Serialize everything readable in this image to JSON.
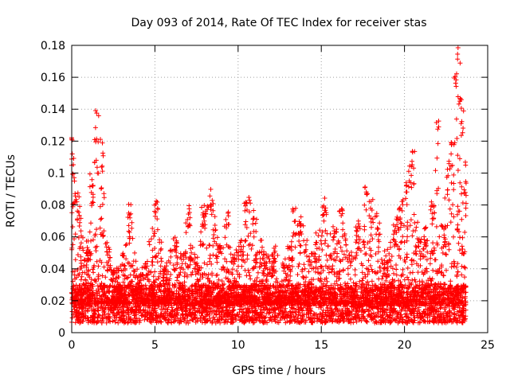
{
  "chart_data": {
    "type": "scatter",
    "title": "Day 093 of 2014, Rate Of TEC Index for receiver stas",
    "xlabel": "GPS time / hours",
    "ylabel": "ROTI / TECUs",
    "xlim": [
      0,
      25
    ],
    "ylim": [
      0,
      0.18
    ],
    "xticks": [
      0,
      5,
      10,
      15,
      20,
      25
    ],
    "xtick_labels": [
      "0",
      "5",
      "10",
      "15",
      "20",
      "25"
    ],
    "yticks": [
      0,
      0.02,
      0.04,
      0.06,
      0.08,
      0.1,
      0.12,
      0.14,
      0.16,
      0.18
    ],
    "ytick_labels": [
      "0",
      "0.02",
      "0.04",
      "0.06",
      "0.08",
      "0.1",
      "0.12",
      "0.14",
      "0.16",
      "0.18"
    ],
    "grid": true,
    "marker": "+",
    "color": "#ff0000",
    "series": [
      {
        "name": "ROTI",
        "x_range": [
          0,
          23.7
        ],
        "baseline_range": [
          0.006,
          0.03
        ],
        "envelope": [
          {
            "x": 0.0,
            "y": 0.123
          },
          {
            "x": 0.15,
            "y": 0.1
          },
          {
            "x": 0.4,
            "y": 0.088
          },
          {
            "x": 0.8,
            "y": 0.05
          },
          {
            "x": 1.0,
            "y": 0.058
          },
          {
            "x": 1.2,
            "y": 0.1
          },
          {
            "x": 1.5,
            "y": 0.14
          },
          {
            "x": 1.8,
            "y": 0.125
          },
          {
            "x": 2.1,
            "y": 0.06
          },
          {
            "x": 2.6,
            "y": 0.04
          },
          {
            "x": 3.1,
            "y": 0.05
          },
          {
            "x": 3.5,
            "y": 0.082
          },
          {
            "x": 4.0,
            "y": 0.035
          },
          {
            "x": 4.4,
            "y": 0.045
          },
          {
            "x": 5.1,
            "y": 0.085
          },
          {
            "x": 5.6,
            "y": 0.042
          },
          {
            "x": 6.2,
            "y": 0.06
          },
          {
            "x": 6.6,
            "y": 0.05
          },
          {
            "x": 7.0,
            "y": 0.082
          },
          {
            "x": 7.5,
            "y": 0.045
          },
          {
            "x": 7.9,
            "y": 0.08
          },
          {
            "x": 8.4,
            "y": 0.09
          },
          {
            "x": 8.9,
            "y": 0.06
          },
          {
            "x": 9.3,
            "y": 0.08
          },
          {
            "x": 9.7,
            "y": 0.05
          },
          {
            "x": 10.2,
            "y": 0.06
          },
          {
            "x": 10.5,
            "y": 0.092
          },
          {
            "x": 11.0,
            "y": 0.075
          },
          {
            "x": 11.6,
            "y": 0.05
          },
          {
            "x": 12.2,
            "y": 0.055
          },
          {
            "x": 12.8,
            "y": 0.045
          },
          {
            "x": 13.4,
            "y": 0.083
          },
          {
            "x": 13.8,
            "y": 0.075
          },
          {
            "x": 14.3,
            "y": 0.05
          },
          {
            "x": 14.8,
            "y": 0.065
          },
          {
            "x": 15.2,
            "y": 0.085
          },
          {
            "x": 15.8,
            "y": 0.065
          },
          {
            "x": 16.2,
            "y": 0.08
          },
          {
            "x": 16.7,
            "y": 0.05
          },
          {
            "x": 17.2,
            "y": 0.07
          },
          {
            "x": 17.7,
            "y": 0.092
          },
          {
            "x": 18.0,
            "y": 0.085
          },
          {
            "x": 18.4,
            "y": 0.075
          },
          {
            "x": 18.9,
            "y": 0.05
          },
          {
            "x": 19.4,
            "y": 0.068
          },
          {
            "x": 19.8,
            "y": 0.082
          },
          {
            "x": 20.2,
            "y": 0.1
          },
          {
            "x": 20.5,
            "y": 0.115
          },
          {
            "x": 20.9,
            "y": 0.06
          },
          {
            "x": 21.3,
            "y": 0.07
          },
          {
            "x": 21.7,
            "y": 0.085
          },
          {
            "x": 22.0,
            "y": 0.136
          },
          {
            "x": 22.3,
            "y": 0.07
          },
          {
            "x": 22.6,
            "y": 0.105
          },
          {
            "x": 22.8,
            "y": 0.13
          },
          {
            "x": 23.1,
            "y": 0.165
          },
          {
            "x": 23.3,
            "y": 0.18
          },
          {
            "x": 23.5,
            "y": 0.15
          },
          {
            "x": 23.7,
            "y": 0.1
          }
        ]
      }
    ]
  }
}
